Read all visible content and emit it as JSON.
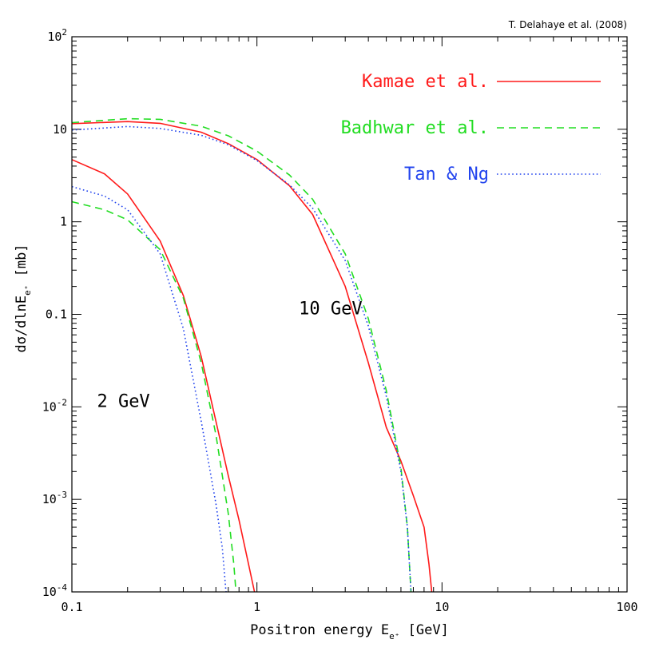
{
  "chart_data": {
    "type": "line",
    "title": "",
    "credit": "T. Delahaye et al. (2008)",
    "xlabel": "Positron energy E",
    "xlabel_sub": "e⁺",
    "xlabel_unit": "[GeV]",
    "ylabel": "dσ/dlnE",
    "ylabel_sub": "e⁺",
    "ylabel_unit": "[mb]",
    "x_scale": "log",
    "y_scale": "log",
    "xlim": [
      0.1,
      100
    ],
    "ylim": [
      0.0001,
      100
    ],
    "x_ticks": [
      {
        "value": 0.1,
        "label": "0.1"
      },
      {
        "value": 1,
        "label": "1"
      },
      {
        "value": 10,
        "label": "10"
      },
      {
        "value": 100,
        "label": "100"
      }
    ],
    "y_ticks": [
      {
        "value": 0.0001,
        "base": "10",
        "exp": "-4"
      },
      {
        "value": 0.001,
        "base": "10",
        "exp": "-3"
      },
      {
        "value": 0.01,
        "base": "10",
        "exp": "-2"
      },
      {
        "value": 0.1,
        "base": "0.1",
        "exp": ""
      },
      {
        "value": 1,
        "base": "1",
        "exp": ""
      },
      {
        "value": 10,
        "base": "10",
        "exp": ""
      },
      {
        "value": 100,
        "base": "10",
        "exp": "2"
      }
    ],
    "legend": {
      "placement": "top-right",
      "entries": [
        {
          "label": "Kamae et al.",
          "color": "#ff1a1a",
          "dash": "solid"
        },
        {
          "label": "Badhwar et al.",
          "color": "#22dd22",
          "dash": "dashed"
        },
        {
          "label": "Tan & Ng",
          "color": "#2244ee",
          "dash": "dotted"
        }
      ]
    },
    "annotations": [
      {
        "text": "10 GeV",
        "x": 2.5,
        "y": 0.1
      },
      {
        "text": "2 GeV",
        "x": 0.19,
        "y": 0.01
      }
    ],
    "series": [
      {
        "name": "Kamae et al. (10 GeV)",
        "color": "#ff1a1a",
        "dash": "solid",
        "x": [
          0.1,
          0.2,
          0.3,
          0.5,
          0.7,
          1.0,
          1.5,
          2.0,
          3.0,
          4.0,
          5.0,
          6.0,
          7.0,
          8.0,
          8.5,
          8.8
        ],
        "y": [
          11.5,
          12.1,
          11.6,
          9.3,
          7.0,
          4.7,
          2.45,
          1.2,
          0.2,
          0.03,
          0.006,
          0.0026,
          0.0011,
          0.0005,
          0.0002,
          0.0001
        ]
      },
      {
        "name": "Badhwar et al. (10 GeV)",
        "color": "#22dd22",
        "dash": "dashed",
        "x": [
          0.1,
          0.2,
          0.3,
          0.5,
          0.7,
          1.0,
          1.5,
          2.0,
          3.0,
          4.0,
          5.0,
          6.0,
          6.5,
          6.8
        ],
        "y": [
          11.8,
          13.0,
          12.8,
          10.8,
          8.5,
          5.8,
          3.2,
          1.75,
          0.45,
          0.09,
          0.015,
          0.0022,
          0.0005,
          0.0001
        ]
      },
      {
        "name": "Tan & Ng (10 GeV)",
        "color": "#2244ee",
        "dash": "dotted",
        "x": [
          0.1,
          0.2,
          0.3,
          0.5,
          0.7,
          1.0,
          1.5,
          2.0,
          3.0,
          4.0,
          5.0,
          6.0,
          6.5,
          6.8
        ],
        "y": [
          9.8,
          10.7,
          10.2,
          8.6,
          6.8,
          4.6,
          2.5,
          1.4,
          0.38,
          0.075,
          0.013,
          0.002,
          0.0005,
          0.0001
        ]
      },
      {
        "name": "Kamae et al. (2 GeV)",
        "color": "#ff1a1a",
        "dash": "solid",
        "x": [
          0.1,
          0.15,
          0.2,
          0.3,
          0.4,
          0.5,
          0.6,
          0.7,
          0.8,
          0.9,
          0.97
        ],
        "y": [
          4.7,
          3.3,
          2.0,
          0.62,
          0.16,
          0.035,
          0.007,
          0.0018,
          0.0006,
          0.0002,
          0.0001
        ]
      },
      {
        "name": "Badhwar et al. (2 GeV)",
        "color": "#22dd22",
        "dash": "dashed",
        "x": [
          0.1,
          0.15,
          0.2,
          0.3,
          0.4,
          0.5,
          0.6,
          0.7,
          0.75,
          0.77
        ],
        "y": [
          1.65,
          1.35,
          1.05,
          0.5,
          0.15,
          0.03,
          0.005,
          0.0007,
          0.0002,
          0.0001
        ]
      },
      {
        "name": "Tan & Ng (2 GeV)",
        "color": "#2244ee",
        "dash": "dotted",
        "x": [
          0.1,
          0.15,
          0.2,
          0.3,
          0.4,
          0.5,
          0.6,
          0.65,
          0.68
        ],
        "y": [
          2.4,
          1.9,
          1.35,
          0.45,
          0.07,
          0.007,
          0.0009,
          0.0003,
          0.0001
        ]
      }
    ]
  }
}
